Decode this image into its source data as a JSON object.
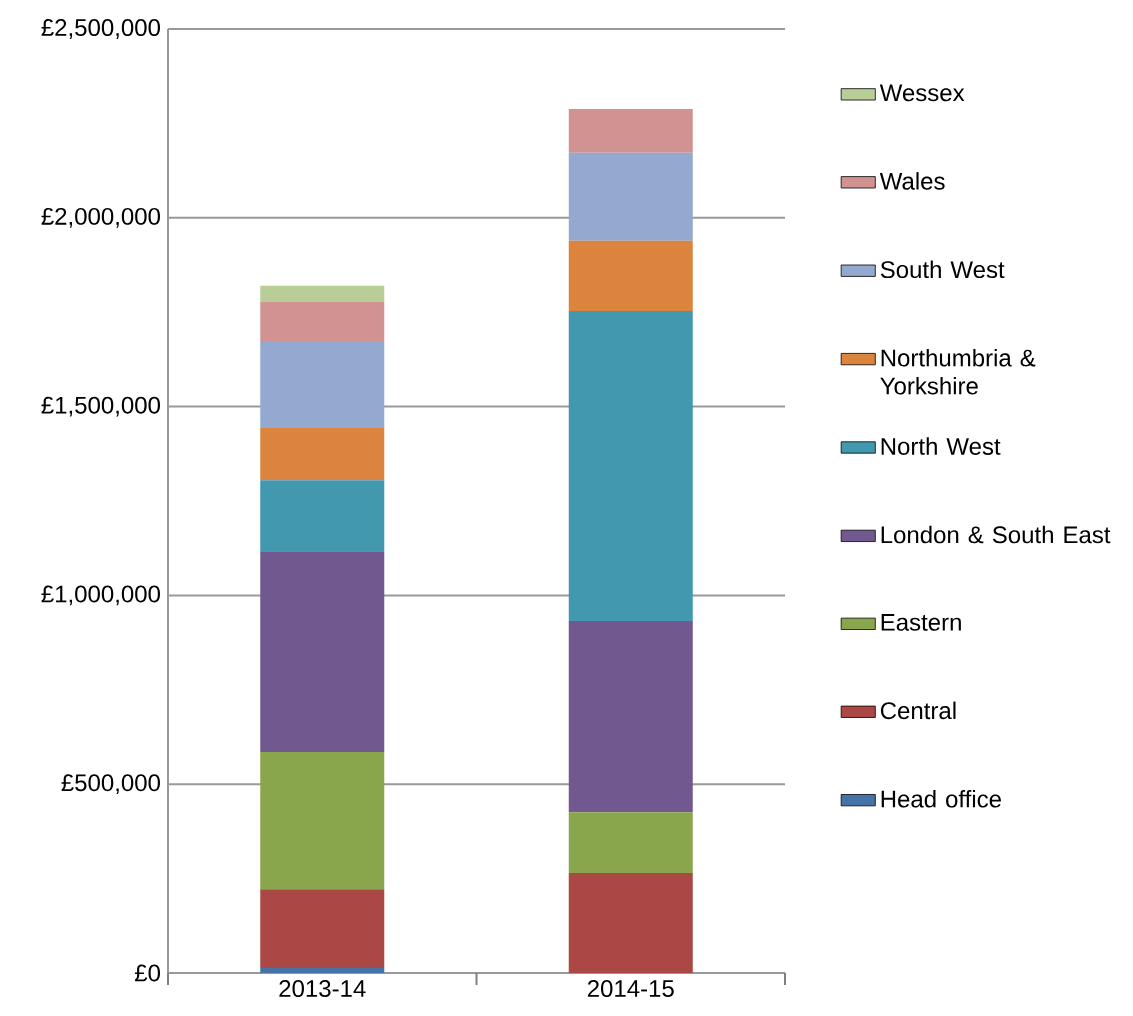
{
  "chart_data": {
    "type": "bar",
    "stacked": true,
    "categories": [
      "2013-14",
      "2014-15"
    ],
    "series": [
      {
        "name": "Head office",
        "color": "#4572a7",
        "values": [
          13000,
          null
        ]
      },
      {
        "name": "Central",
        "color": "#ab4744",
        "values": [
          209000,
          265000
        ]
      },
      {
        "name": "Eastern",
        "color": "#8aa64c",
        "values": [
          363000,
          161000
        ]
      },
      {
        "name": "London & South East",
        "color": "#71588f",
        "values": [
          532000,
          506000
        ]
      },
      {
        "name": "North West",
        "color": "#4198af",
        "values": [
          188000,
          821000
        ]
      },
      {
        "name": "Northumbria & Yorkshire",
        "color": "#db843d",
        "values": [
          138000,
          186000
        ]
      },
      {
        "name": "South West",
        "color": "#93a9cf",
        "values": [
          231000,
          233000
        ]
      },
      {
        "name": "Wales",
        "color": "#d19392",
        "values": [
          103000,
          116000
        ]
      },
      {
        "name": "Wessex",
        "color": "#b9cd96",
        "values": [
          43000,
          null
        ]
      }
    ],
    "ylim": [
      0,
      2500000
    ],
    "yticks": [
      {
        "value": 0,
        "label": "£0"
      },
      {
        "value": 500000,
        "label": "£500,000"
      },
      {
        "value": 1000000,
        "label": "£1,000,000"
      },
      {
        "value": 1500000,
        "label": "£1,500,000"
      },
      {
        "value": 2000000,
        "label": "£2,000,000"
      },
      {
        "value": 2500000,
        "label": "£2,500,000"
      }
    ],
    "grid": "y",
    "legend": "right"
  }
}
